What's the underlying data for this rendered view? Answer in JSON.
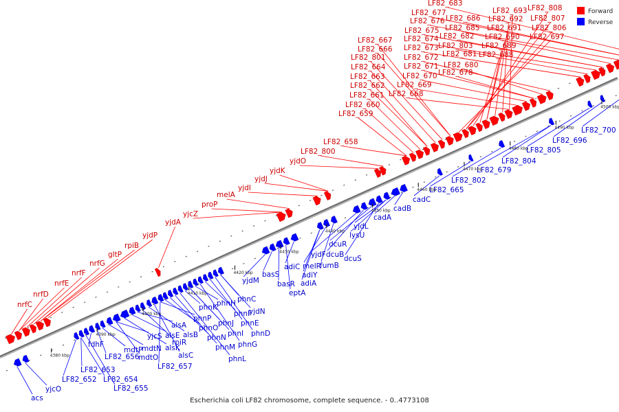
{
  "caption": "Escherichia coli LF82 chromosome, complete sequence. - 0..4773108",
  "legend": [
    {
      "label": "Forward",
      "color": "#ff0000"
    },
    {
      "label": "Reverse",
      "color": "#0000ff"
    }
  ],
  "colors": {
    "forward": "#ff0000",
    "reverse": "#0000ff",
    "backbone": "#808080"
  },
  "ticks": [
    "4380 kbp",
    "4390 kbp",
    "4400 kbp",
    "4410 kbp",
    "4420 kbp",
    "4430 kbp",
    "4440 kbp",
    "4450 kbp",
    "4460 kbp",
    "4470 kbp",
    "4480 kbp",
    "4490 kbp",
    "4500 kbp"
  ],
  "forward_genes": [
    "LF82_683",
    "LF82_677",
    "LF82_686",
    "LF82_676",
    "LF82_685",
    "LF82_675",
    "LF82_682",
    "LF82_674",
    "LF82_803",
    "LF82_673",
    "LF82_681",
    "LF82_672",
    "LF82_680",
    "LF82_671",
    "LF82_678",
    "LF82_670",
    "LF82_669",
    "LF82_668",
    "LF82_693",
    "LF82_692",
    "LF82_691",
    "LF82_690",
    "LF82_689",
    "LF82_688",
    "LF82_808",
    "LF82_807",
    "LF82_806",
    "LF82_697",
    "LF82_667",
    "LF82_666",
    "LF82_801",
    "LF82_664",
    "LF82_663",
    "LF82_662",
    "LF82_661",
    "LF82_660",
    "LF82_659",
    "LF82_658",
    "LF82_800",
    "yjdO",
    "yjdK",
    "yjdJ",
    "yjdI",
    "melA",
    "proP",
    "yjcZ",
    "yjdA",
    "yjdP",
    "rpiB",
    "gltP",
    "nrfG",
    "nrfF",
    "nrfE",
    "nrfD",
    "nrfC"
  ],
  "reverse_genes": [
    "acs",
    "yjcO",
    "LF82_652",
    "LF82_653",
    "LF82_654",
    "LF82_655",
    "fdhF",
    "LF82_656",
    "mdtP",
    "mdtN",
    "mdtO",
    "yjcS",
    "alsK",
    "alsE",
    "alsA",
    "rpiR",
    "alsB",
    "alsC",
    "LF82_657",
    "phnP",
    "phnO",
    "phnN",
    "phnM",
    "phnL",
    "phnK",
    "phnJ",
    "phnI",
    "phnH",
    "phnG",
    "phnF",
    "phnE",
    "phnD",
    "phnC",
    "yjdN",
    "yjdM",
    "basS",
    "basR",
    "eptA",
    "adiC",
    "adiY",
    "adiA",
    "melR",
    "fumB",
    "yjdF",
    "dcuB",
    "dcuR",
    "dcuS",
    "lysU",
    "yjdL",
    "cadA",
    "cadB",
    "cadC",
    "LF82_665",
    "LF82_802",
    "LF82_679",
    "LF82_804",
    "LF82_805",
    "LF82_696",
    "LF82_700"
  ]
}
